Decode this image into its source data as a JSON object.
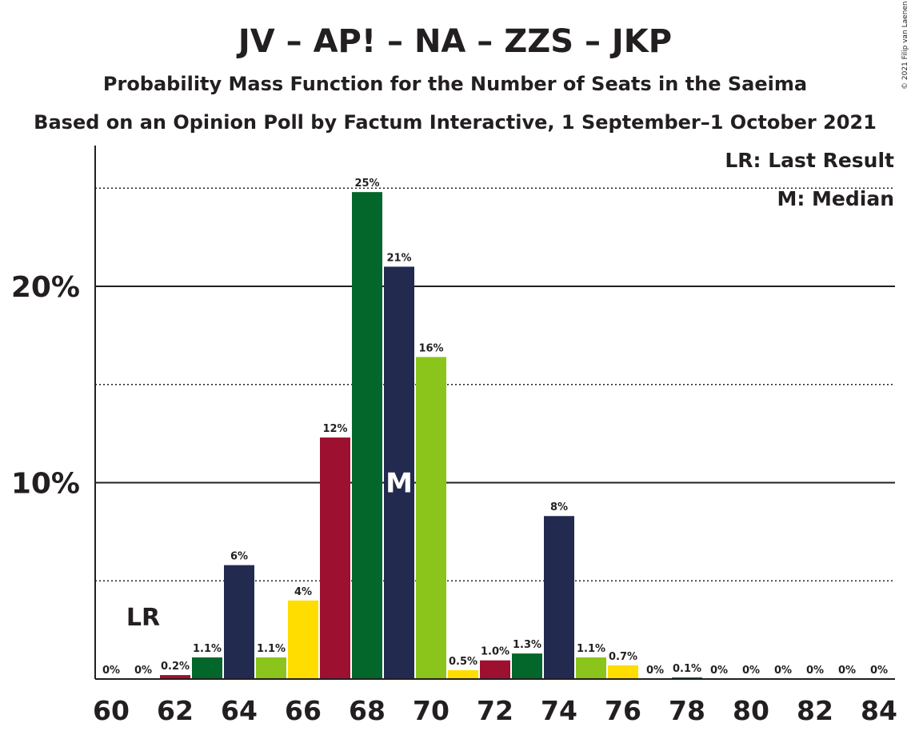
{
  "chart_data": {
    "type": "bar",
    "title": "JV – AP! – NA – ZZS – JKP",
    "subtitle": "Probability Mass Function for the Number of Seats in the Saeima",
    "subtitle2": "Based on an Opinion Poll by Factum Interactive, 1 September–1 October 2021",
    "copyright": "© 2021 Filip van Laenen",
    "legend": {
      "last_result": "LR: Last Result",
      "median": "M: Median"
    },
    "last_result_marker": "LR",
    "last_result_seat": 61,
    "median_marker": "M",
    "median_seat": 69,
    "y_tick_labels": [
      "10%",
      "20%"
    ],
    "y_tick_values": [
      10,
      20
    ],
    "y_dotted_lines": [
      5,
      15,
      25
    ],
    "ylim": [
      0,
      27
    ],
    "x_tick_labels": [
      "60",
      "62",
      "64",
      "66",
      "68",
      "70",
      "72",
      "74",
      "76",
      "78",
      "80",
      "82",
      "84"
    ],
    "party_colors": {
      "JV": "#03662a",
      "AP": "#222a50",
      "NA": "#9e1030",
      "ZZS": "#8bc41b",
      "JKP": "#ffdd00"
    },
    "x": [
      60,
      61,
      62,
      63,
      64,
      65,
      66,
      67,
      68,
      69,
      70,
      71,
      72,
      73,
      74,
      75,
      76,
      77,
      78,
      79,
      80,
      81,
      82,
      83,
      84
    ],
    "values": [
      0,
      0,
      0.2,
      1.1,
      5.8,
      1.1,
      4.0,
      12.3,
      24.8,
      21.0,
      16.4,
      0.45,
      0.95,
      1.3,
      8.3,
      1.1,
      0.7,
      0,
      0.08,
      0,
      0,
      0,
      0,
      0,
      0
    ],
    "labels": [
      "0%",
      "0%",
      "0.2%",
      "1.1%",
      "6%",
      "1.1%",
      "4%",
      "12%",
      "25%",
      "21%",
      "16%",
      "0.5%",
      "1.0%",
      "1.3%",
      "8%",
      "1.1%",
      "0.7%",
      "0%",
      "0.1%",
      "0%",
      "0%",
      "0%",
      "0%",
      "0%",
      "0%"
    ],
    "colors": [
      "#9e1030",
      "#03662a",
      "#9e1030",
      "#03662a",
      "#222a50",
      "#8bc41b",
      "#ffdd00",
      "#9e1030",
      "#03662a",
      "#222a50",
      "#8bc41b",
      "#ffdd00",
      "#9e1030",
      "#03662a",
      "#222a50",
      "#8bc41b",
      "#ffdd00",
      "#9e1030",
      "#03662a",
      "#222a50",
      "#8bc41b",
      "#ffdd00",
      "#9e1030",
      "#03662a",
      "#222a50"
    ]
  }
}
